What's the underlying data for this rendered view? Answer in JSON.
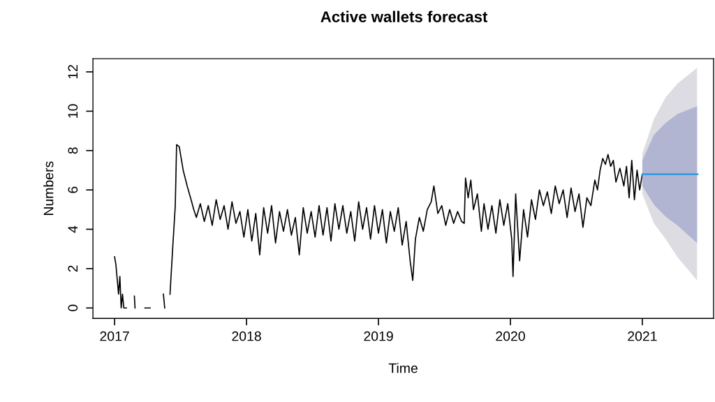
{
  "chart_data": {
    "type": "line",
    "title": "Active wallets forecast",
    "xlabel": "Time",
    "ylabel": "Numbers",
    "xlim": [
      2016.836,
      2021.54
    ],
    "ylim": [
      -0.53,
      12.67
    ],
    "xticks": [
      2017,
      2018,
      2019,
      2020,
      2021
    ],
    "yticks": [
      0,
      2,
      4,
      6,
      8,
      10,
      12
    ],
    "grid": false,
    "legend": false,
    "series": [
      {
        "color": "#000000",
        "x": [
          2017.0,
          2017.01,
          2017.03,
          2017.04,
          2017.05,
          2017.06,
          2017.07,
          2017.09,
          2017.1,
          2017.15,
          2017.155,
          2017.2,
          2017.23,
          2017.27,
          2017.3,
          2017.37,
          2017.38,
          2017.4,
          2017.42,
          2017.44,
          2017.46,
          2017.47,
          2017.49,
          2017.52,
          2017.55,
          2017.58,
          2017.6,
          2017.62,
          2017.65,
          2017.68,
          2017.71,
          2017.74,
          2017.77,
          2017.8,
          2017.83,
          2017.86,
          2017.89,
          2017.92,
          2017.95,
          2017.98,
          2018.01,
          2018.04,
          2018.07,
          2018.1,
          2018.13,
          2018.16,
          2018.19,
          2018.22,
          2018.25,
          2018.28,
          2018.31,
          2018.34,
          2018.37,
          2018.4,
          2018.43,
          2018.46,
          2018.49,
          2018.52,
          2018.55,
          2018.58,
          2018.61,
          2018.64,
          2018.67,
          2018.7,
          2018.73,
          2018.76,
          2018.79,
          2018.82,
          2018.85,
          2018.88,
          2018.91,
          2018.94,
          2018.97,
          2019.0,
          2019.03,
          2019.06,
          2019.09,
          2019.12,
          2019.15,
          2019.18,
          2019.21,
          2019.24,
          2019.26,
          2019.28,
          2019.31,
          2019.34,
          2019.37,
          2019.4,
          2019.42,
          2019.45,
          2019.48,
          2019.51,
          2019.54,
          2019.57,
          2019.6,
          2019.63,
          2019.65,
          2019.66,
          2019.68,
          2019.7,
          2019.72,
          2019.75,
          2019.78,
          2019.8,
          2019.83,
          2019.86,
          2019.89,
          2019.92,
          2019.95,
          2019.98,
          2020.01,
          2020.02,
          2020.04,
          2020.07,
          2020.1,
          2020.13,
          2020.16,
          2020.19,
          2020.22,
          2020.25,
          2020.28,
          2020.31,
          2020.34,
          2020.37,
          2020.4,
          2020.43,
          2020.46,
          2020.49,
          2020.52,
          2020.55,
          2020.58,
          2020.61,
          2020.64,
          2020.66,
          2020.68,
          2020.7,
          2020.72,
          2020.74,
          2020.76,
          2020.78,
          2020.8,
          2020.83,
          2020.86,
          2020.88,
          2020.9,
          2020.92,
          2020.94,
          2020.96,
          2020.98,
          2021.0
        ],
        "values": [
          2.6,
          2.2,
          0.7,
          1.6,
          0,
          0.7,
          0,
          0,
          null,
          0.6,
          0,
          null,
          0,
          0,
          null,
          0.7,
          0,
          null,
          0.7,
          3.0,
          5.2,
          8.3,
          8.2,
          7.0,
          6.2,
          5.5,
          5.0,
          4.6,
          5.3,
          4.4,
          5.2,
          4.2,
          5.5,
          4.5,
          5.2,
          4.0,
          5.4,
          4.3,
          4.9,
          3.6,
          5.0,
          3.4,
          4.8,
          2.7,
          5.1,
          3.8,
          5.2,
          3.3,
          4.9,
          3.9,
          5.0,
          3.7,
          4.6,
          2.7,
          5.1,
          3.8,
          4.9,
          3.6,
          5.2,
          3.7,
          5.1,
          3.4,
          5.3,
          4.0,
          5.2,
          3.8,
          4.9,
          3.4,
          5.4,
          4.0,
          5.1,
          3.5,
          5.2,
          3.8,
          5.0,
          3.3,
          4.9,
          3.9,
          5.1,
          3.2,
          4.4,
          2.4,
          1.4,
          3.5,
          4.6,
          3.9,
          5.0,
          5.4,
          6.2,
          4.8,
          5.2,
          4.2,
          5.0,
          4.3,
          4.9,
          4.4,
          4.3,
          6.6,
          5.6,
          6.5,
          5.0,
          5.8,
          3.9,
          5.3,
          4.0,
          5.2,
          3.8,
          5.5,
          4.2,
          5.3,
          3.5,
          1.6,
          5.8,
          2.4,
          5.0,
          3.6,
          5.5,
          4.5,
          6.0,
          5.2,
          5.9,
          4.8,
          6.2,
          5.3,
          6.0,
          4.6,
          6.1,
          4.9,
          5.8,
          4.1,
          5.6,
          5.2,
          6.5,
          6.0,
          7.0,
          7.6,
          7.3,
          7.8,
          7.2,
          7.5,
          6.4,
          7.1,
          6.2,
          7.2,
          5.6,
          7.5,
          5.5,
          7.0,
          6.0,
          6.8
        ]
      },
      {
        "color": "#dcdce2",
        "x": [
          2021.0,
          2021.088,
          2021.176,
          2021.265,
          2021.415
        ],
        "values": [
          null,
          null,
          null,
          null,
          null
        ],
        "lower": [
          5.8,
          4.3,
          3.5,
          2.6,
          1.4
        ],
        "upper": [
          7.85,
          9.6,
          10.7,
          11.4,
          12.2
        ]
      },
      {
        "color": "#b1b5d1",
        "x": [
          2021.0,
          2021.088,
          2021.176,
          2021.265,
          2021.415
        ],
        "values": [
          null,
          null,
          null,
          null,
          null
        ],
        "lower": [
          6.2,
          5.25,
          4.65,
          4.2,
          3.3
        ],
        "upper": [
          7.5,
          8.8,
          9.4,
          9.85,
          10.25
        ]
      },
      {
        "color": "#2196e0",
        "x": [
          2021.0,
          2021.088,
          2021.176,
          2021.265,
          2021.42
        ],
        "values": [
          6.8,
          6.8,
          6.8,
          6.8,
          6.8
        ]
      }
    ]
  }
}
